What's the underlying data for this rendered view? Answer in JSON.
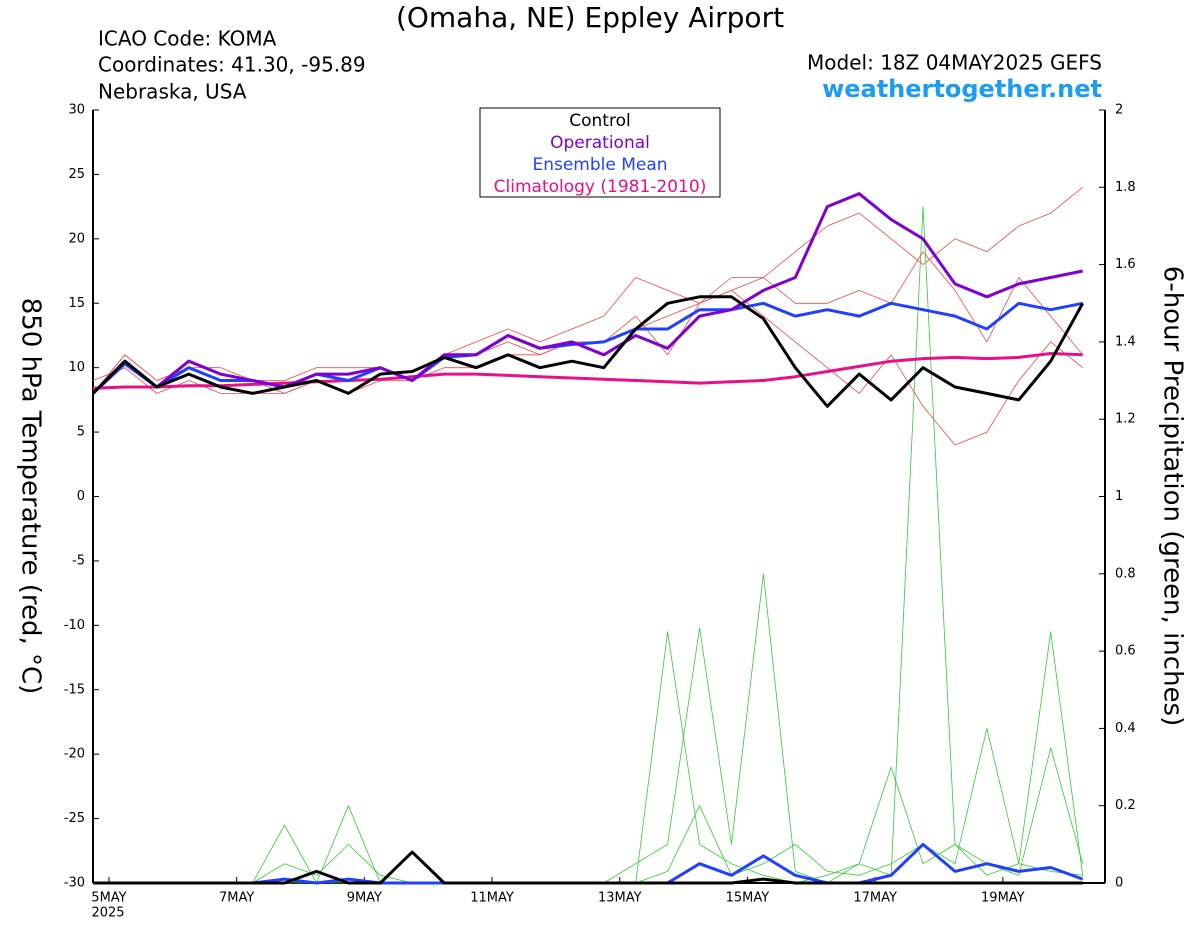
{
  "chart_data": {
    "type": "line",
    "title": "(Omaha, NE) Eppley Airport",
    "info": [
      "ICAO Code: KOMA",
      "Coordinates: 41.30, -95.89",
      "Nebraska, USA"
    ],
    "model": "Model: 18Z 04MAY2025 GEFS",
    "site": "weathertogether.net",
    "ylabel": "850 hPa Temperature (red, °C)",
    "y2label": "6-hour Precipitation (green, inches)",
    "year_label": "2025",
    "x": [
      -0.25,
      0.25,
      0.75,
      1.25,
      1.75,
      2.25,
      2.75,
      3.25,
      3.75,
      4.25,
      4.75,
      5.25,
      5.75,
      6.25,
      6.75,
      7.25,
      7.75,
      8.25,
      8.75,
      9.25,
      9.75,
      10.25,
      10.75,
      11.25,
      11.75,
      12.25,
      12.75,
      13.25,
      13.75,
      14.25,
      14.75,
      15.25
    ],
    "xlim": [
      -0.25,
      15.6
    ],
    "xticks": [
      {
        "value": 0,
        "label": "5MAY"
      },
      {
        "value": 2,
        "label": "7MAY"
      },
      {
        "value": 4,
        "label": "9MAY"
      },
      {
        "value": 6,
        "label": "11MAY"
      },
      {
        "value": 8,
        "label": "13MAY"
      },
      {
        "value": 10,
        "label": "15MAY"
      },
      {
        "value": 12,
        "label": "17MAY"
      },
      {
        "value": 14,
        "label": "19MAY"
      }
    ],
    "ylim": [
      -30,
      30
    ],
    "yticks": [
      -30,
      -25,
      -20,
      -15,
      -10,
      -5,
      0,
      5,
      10,
      15,
      20,
      25,
      30
    ],
    "y2lim": [
      0,
      2
    ],
    "y2ticks": [
      0,
      0.2,
      0.4,
      0.6,
      0.8,
      1,
      1.2,
      1.4,
      1.6,
      1.8,
      2
    ],
    "member_colors": {
      "temp": "#f04848",
      "precip": "#33cc33"
    },
    "members": [
      {
        "temp": [
          8,
          11,
          9,
          10,
          9,
          9,
          8,
          9,
          8,
          9,
          9,
          11,
          11,
          12,
          11,
          12,
          12,
          13,
          14,
          15,
          16,
          17,
          19,
          21,
          22,
          20,
          18,
          20,
          19,
          21,
          22,
          24
        ],
        "precip": [
          0,
          0,
          0,
          0,
          0,
          0,
          0,
          0,
          0,
          0,
          0,
          0,
          0,
          0,
          0,
          0,
          0,
          0,
          0.65,
          0.1,
          0.05,
          0.02,
          0,
          0.02,
          0.05,
          0.3,
          0.05,
          0.1,
          0.02,
          0.05,
          0.03,
          0.02
        ]
      },
      {
        "temp": [
          9,
          10,
          8,
          9,
          8,
          8,
          8,
          9,
          9,
          10,
          9,
          10,
          10,
          11,
          11,
          12,
          12,
          14,
          11,
          15,
          16,
          14,
          12,
          10,
          8,
          11,
          7,
          4,
          5,
          9,
          12,
          10
        ],
        "precip": [
          0,
          0,
          0,
          0,
          0,
          0,
          0.15,
          0,
          0.2,
          0,
          0,
          0,
          0,
          0,
          0,
          0,
          0,
          0.05,
          0.1,
          0.66,
          0.1,
          0.8,
          0.03,
          0,
          0.05,
          0.02,
          1.75,
          0.1,
          0.05,
          0.02,
          0.35,
          0.05
        ]
      },
      {
        "temp": [
          8,
          11,
          9,
          10,
          10,
          9,
          9,
          10,
          10,
          10,
          9,
          11,
          12,
          13,
          12,
          13,
          14,
          17,
          16,
          15,
          17,
          17,
          15,
          15,
          16,
          15,
          19,
          16,
          12,
          17,
          14,
          11
        ],
        "precip": [
          0,
          0,
          0,
          0,
          0,
          0,
          0.05,
          0.02,
          0.1,
          0.02,
          0,
          0,
          0,
          0,
          0,
          0,
          0,
          0,
          0.03,
          0.2,
          0.02,
          0.05,
          0.1,
          0.03,
          0.02,
          0.05,
          0.1,
          0.05,
          0.4,
          0.05,
          0.65,
          0.02
        ]
      }
    ],
    "series": [
      {
        "name": "Control",
        "color": "#000000",
        "values": [
          8,
          10.5,
          8.5,
          9.5,
          8.5,
          8,
          8.5,
          9,
          8,
          9.5,
          9.7,
          10.8,
          10,
          11,
          10,
          10.5,
          10,
          13,
          15,
          15.5,
          15.5,
          13.8,
          10,
          7,
          9.5,
          7.5,
          10,
          8.5,
          8,
          7.5,
          10.5,
          15
        ],
        "precip": [
          0,
          0,
          0,
          0,
          0,
          0,
          0,
          0.03,
          0,
          0,
          0.08,
          0,
          0,
          0,
          0,
          0,
          0,
          0,
          0,
          0,
          0,
          0.01,
          0,
          0,
          0,
          0,
          0,
          0,
          0,
          0,
          0,
          0
        ]
      },
      {
        "name": "Operational",
        "color": "#8000d0",
        "values": [
          8,
          10.5,
          8.5,
          10.5,
          9.5,
          9,
          8.5,
          9.5,
          9.5,
          10,
          9,
          11,
          11,
          12.5,
          11.5,
          12,
          11,
          12.5,
          11.5,
          14,
          14.5,
          16,
          17,
          22.5,
          23.5,
          21.5,
          20,
          16.5,
          15.5,
          16.5,
          17,
          17.5
        ]
      },
      {
        "name": "Ensemble Mean",
        "color": "#2040ff",
        "values": [
          8,
          10.3,
          8.5,
          10,
          9,
          9,
          8.5,
          9.5,
          9,
          10,
          9,
          10.8,
          11,
          12.5,
          11.5,
          11.8,
          12,
          13,
          13,
          14.5,
          14.5,
          15,
          14,
          14.5,
          14,
          15,
          14.5,
          14,
          13,
          15,
          14.5,
          15
        ],
        "precip": [
          0,
          0,
          0,
          0,
          0,
          0,
          0.01,
          0,
          0.01,
          0,
          0,
          0,
          0,
          0,
          0,
          0,
          0,
          0,
          0,
          0.05,
          0.02,
          0.07,
          0.02,
          0,
          0,
          0.02,
          0.1,
          0.03,
          0.05,
          0.03,
          0.04,
          0.01
        ]
      },
      {
        "name": "Climatology (1981-2010)",
        "color": "#e8108a",
        "values": [
          8.4,
          8.5,
          8.5,
          8.6,
          8.6,
          8.7,
          8.8,
          8.9,
          9.0,
          9.1,
          9.3,
          9.5,
          9.5,
          9.4,
          9.3,
          9.2,
          9.1,
          9.0,
          8.9,
          8.8,
          8.9,
          9.0,
          9.3,
          9.7,
          10.1,
          10.5,
          10.7,
          10.8,
          10.7,
          10.8,
          11.1,
          11.0
        ]
      }
    ]
  }
}
